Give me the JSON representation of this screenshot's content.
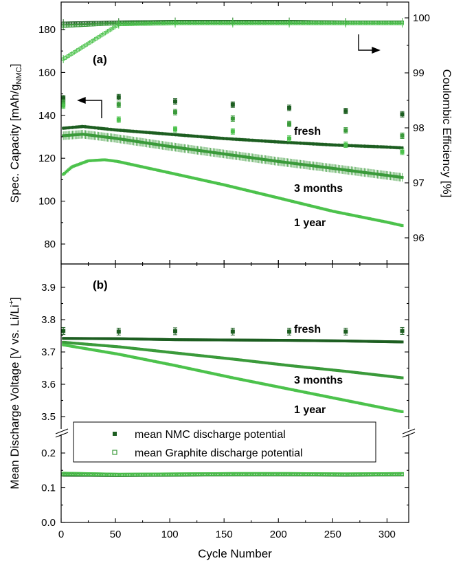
{
  "chart_data": [
    {
      "type": "scatter",
      "panel_label": "(a)",
      "xlabel": "Cycle Number",
      "ylabel_left": "Spec. Capacity [mAh/g",
      "ylabel_left_sub": "NMC",
      "ylabel_left_end": "]",
      "ylabel_right": "Coulombic Efficiency [%]",
      "xlim": [
        0,
        320
      ],
      "ylim_left": [
        70,
        190
      ],
      "ylim_right": [
        95.5,
        100.15
      ],
      "x_ticks": [
        "0",
        "50",
        "100",
        "150",
        "200",
        "250",
        "300"
      ],
      "y_ticks_left": [
        "80",
        "100",
        "120",
        "140",
        "160",
        "180"
      ],
      "y_ticks_right": [
        "96",
        "97",
        "98",
        "99",
        "100"
      ],
      "grid": false,
      "colors": {
        "fresh": "#1d5e21",
        "3 months": "#3a9a3a",
        "1 year": "#4cc24c"
      },
      "capacity_series": [
        {
          "name": "fresh",
          "x": [
            2,
            20,
            50,
            100,
            150,
            200,
            250,
            300,
            315
          ],
          "values": [
            134,
            134.8,
            133.2,
            131.2,
            129.2,
            127.6,
            126.2,
            125.2,
            124.8
          ]
        },
        {
          "name": "3 months",
          "x": [
            2,
            20,
            50,
            100,
            150,
            200,
            250,
            300,
            315
          ],
          "values": [
            130.5,
            131.2,
            129.3,
            125.5,
            122,
            118.5,
            115.3,
            112,
            111
          ]
        },
        {
          "name": "1 year",
          "x": [
            2,
            10,
            25,
            40,
            52,
            100,
            150,
            200,
            250,
            300,
            315
          ],
          "values": [
            112.5,
            116,
            118.8,
            119.3,
            118.5,
            113.2,
            107.6,
            101.5,
            95.3,
            90.2,
            88.5
          ]
        }
      ],
      "capacity_checkups": [
        {
          "name": "fresh",
          "x": [
            2,
            53,
            105,
            158,
            210,
            262,
            314
          ],
          "values": [
            148,
            148.5,
            146.5,
            145,
            143.5,
            142,
            140.5
          ]
        },
        {
          "name": "3 months",
          "x": [
            2,
            53,
            105,
            158,
            210,
            262,
            314
          ],
          "values": [
            146,
            145,
            141.5,
            138.5,
            136,
            133,
            130.5
          ]
        },
        {
          "name": "1 year",
          "x": [
            2,
            53,
            105,
            158,
            210,
            262,
            314
          ],
          "values": [
            144.5,
            138,
            133.5,
            132.5,
            129.2,
            126.3,
            123
          ]
        }
      ],
      "efficiency_series": [
        {
          "name": "fresh",
          "x": [
            2,
            53,
            105,
            158,
            210,
            262,
            314
          ],
          "values": [
            99.9,
            99.92,
            99.93,
            99.93,
            99.93,
            99.92,
            99.92
          ]
        },
        {
          "name": "3 months",
          "x": [
            2,
            53,
            105,
            158,
            210,
            262,
            314
          ],
          "values": [
            99.85,
            99.9,
            99.92,
            99.92,
            99.92,
            99.92,
            99.92
          ]
        },
        {
          "name": "1 year",
          "x": [
            2,
            53,
            105,
            158,
            210,
            262,
            314
          ],
          "values": [
            99.25,
            99.88,
            99.9,
            99.9,
            99.9,
            99.9,
            99.9
          ]
        }
      ],
      "annotations": [
        "fresh",
        "3 months",
        "1 year"
      ]
    },
    {
      "type": "scatter",
      "panel_label": "(b)",
      "xlabel": "Cycle Number",
      "ylabel": "Mean Discharge Voltage [V vs. Li/Li",
      "ylabel_sup": "+",
      "ylabel_end": "]",
      "xlim": [
        0,
        320
      ],
      "ylim_upper": [
        3.45,
        3.95
      ],
      "ylim_lower": [
        0,
        0.25
      ],
      "axis_break": true,
      "x_ticks": [
        "0",
        "50",
        "100",
        "150",
        "200",
        "250",
        "300"
      ],
      "y_ticks_upper": [
        "3.5",
        "3.6",
        "3.7",
        "3.8",
        "3.9"
      ],
      "y_ticks_lower": [
        "0.0",
        "0.1",
        "0.2"
      ],
      "nmc_series": [
        {
          "name": "fresh",
          "x": [
            2,
            53,
            105,
            158,
            210,
            262,
            314
          ],
          "values": [
            3.742,
            3.741,
            3.738,
            3.737,
            3.736,
            3.734,
            3.731
          ]
        },
        {
          "name": "3 months",
          "x": [
            2,
            53,
            105,
            158,
            210,
            262,
            314
          ],
          "values": [
            3.73,
            3.716,
            3.697,
            3.678,
            3.658,
            3.64,
            3.62
          ]
        },
        {
          "name": "1 year",
          "x": [
            2,
            53,
            105,
            158,
            210,
            262,
            314
          ],
          "values": [
            3.722,
            3.693,
            3.658,
            3.62,
            3.585,
            3.55,
            3.515
          ]
        }
      ],
      "nmc_checkups": {
        "x": [
          2,
          53,
          105,
          158,
          210,
          262,
          314
        ],
        "values": [
          3.765,
          3.763,
          3.764,
          3.763,
          3.763,
          3.763,
          3.765
        ]
      },
      "graphite_series": [
        {
          "name": "fresh",
          "x": [
            2,
            53,
            105,
            158,
            210,
            262,
            314
          ],
          "values": [
            0.137,
            0.136,
            0.137,
            0.138,
            0.138,
            0.137,
            0.138
          ]
        },
        {
          "name": "3 months",
          "x": [
            2,
            53,
            105,
            158,
            210,
            262,
            314
          ],
          "values": [
            0.139,
            0.137,
            0.138,
            0.139,
            0.139,
            0.138,
            0.139
          ]
        },
        {
          "name": "1 year",
          "x": [
            2,
            53,
            105,
            158,
            210,
            262,
            314
          ],
          "values": [
            0.141,
            0.138,
            0.139,
            0.14,
            0.14,
            0.139,
            0.14
          ]
        }
      ],
      "legend": [
        {
          "label": "mean NMC discharge potential",
          "marker": "filled-square"
        },
        {
          "label": "mean Graphite discharge potential",
          "marker": "open-square"
        }
      ],
      "annotations": [
        "fresh",
        "3 months",
        "1 year"
      ]
    }
  ]
}
